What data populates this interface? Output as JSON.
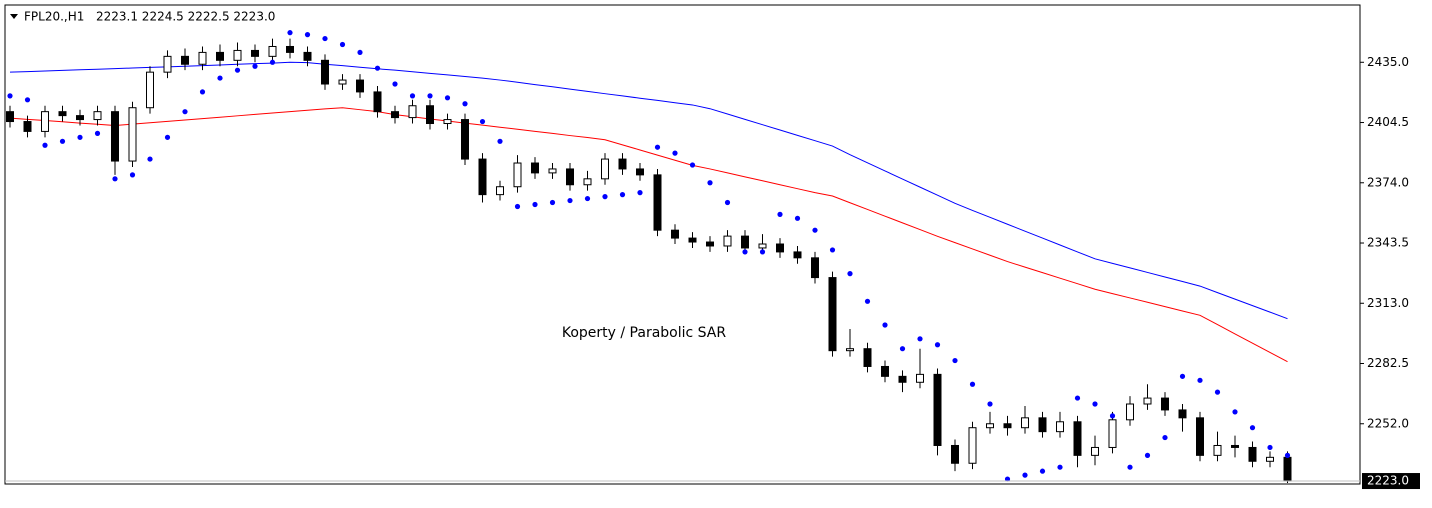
{
  "chart_data": {
    "type": "candlestick",
    "symbol": "FPL20.,H1",
    "header_prices": "2223.1 2224.5 2222.5 2223.0",
    "annotation": "Koperty / Parabolic SAR",
    "ylim": [
      2221.5,
      2464
    ],
    "yticks": [
      {
        "value": 2435.0,
        "label": "2435.0"
      },
      {
        "value": 2404.5,
        "label": "2404.5"
      },
      {
        "value": 2374.0,
        "label": "2374.0"
      },
      {
        "value": 2343.5,
        "label": "2343.5"
      },
      {
        "value": 2313.0,
        "label": "2313.0"
      },
      {
        "value": 2282.5,
        "label": "2282.5"
      },
      {
        "value": 2252.0,
        "label": "2252.0"
      }
    ],
    "last_price": {
      "value": 2223.0,
      "label": "2223.0"
    },
    "up_color": "#ffffff",
    "down_color": "#000000",
    "open": [
      2410,
      2405,
      2400,
      2410,
      2408,
      2406,
      2410,
      2385,
      2412,
      2430,
      2438,
      2434,
      2440,
      2436,
      2441,
      2438,
      2443,
      2440,
      2436,
      2424,
      2426,
      2420,
      2410,
      2407,
      2413,
      2404,
      2406,
      2386,
      2368,
      2372,
      2384,
      2379,
      2381,
      2373,
      2376,
      2386,
      2381,
      2378,
      2350,
      2346,
      2344,
      2342,
      2347,
      2341,
      2343,
      2339,
      2336,
      2326,
      2289,
      2290,
      2281,
      2276,
      2273,
      2277,
      2241,
      2232,
      2250,
      2252,
      2250,
      2255,
      2248,
      2253,
      2236,
      2240,
      2254,
      2262,
      2265,
      2259,
      2255,
      2236,
      2241,
      2240,
      2233,
      2235
    ],
    "high": [
      2413,
      2408,
      2413,
      2413,
      2411,
      2413,
      2413,
      2415,
      2433,
      2441,
      2442,
      2443,
      2444,
      2445,
      2444,
      2447,
      2447,
      2443,
      2439,
      2429,
      2429,
      2423,
      2413,
      2416,
      2416,
      2409,
      2409,
      2389,
      2375,
      2388,
      2387,
      2384,
      2384,
      2380,
      2389,
      2389,
      2384,
      2381,
      2353,
      2349,
      2347,
      2350,
      2350,
      2348,
      2346,
      2342,
      2339,
      2329,
      2300,
      2293,
      2284,
      2279,
      2290,
      2280,
      2244,
      2253,
      2258,
      2256,
      2261,
      2258,
      2258,
      2256,
      2246,
      2258,
      2266,
      2272,
      2268,
      2262,
      2258,
      2248,
      2246,
      2243,
      2238,
      2238
    ],
    "low": [
      2402,
      2397,
      2397,
      2405,
      2403,
      2403,
      2378,
      2382,
      2409,
      2427,
      2431,
      2431,
      2433,
      2433,
      2435,
      2435,
      2437,
      2433,
      2421,
      2421,
      2417,
      2407,
      2404,
      2404,
      2401,
      2401,
      2383,
      2364,
      2365,
      2369,
      2376,
      2376,
      2370,
      2370,
      2373,
      2378,
      2375,
      2347,
      2343,
      2341,
      2339,
      2339,
      2338,
      2338,
      2336,
      2333,
      2323,
      2286,
      2286,
      2278,
      2273,
      2268,
      2270,
      2236,
      2228,
      2229,
      2247,
      2246,
      2247,
      2245,
      2245,
      2230,
      2231,
      2237,
      2251,
      2259,
      2256,
      2248,
      2233,
      2233,
      2235,
      2230,
      2230,
      2222
    ],
    "close": [
      2405,
      2400,
      2410,
      2408,
      2406,
      2410,
      2385,
      2412,
      2430,
      2438,
      2434,
      2440,
      2436,
      2441,
      2438,
      2443,
      2440,
      2436,
      2424,
      2426,
      2420,
      2410,
      2407,
      2413,
      2404,
      2406,
      2386,
      2368,
      2372,
      2384,
      2379,
      2381,
      2373,
      2376,
      2386,
      2381,
      2378,
      2350,
      2346,
      2344,
      2342,
      2347,
      2341,
      2343,
      2339,
      2336,
      2326,
      2289,
      2290,
      2281,
      2276,
      2273,
      2277,
      2241,
      2232,
      2250,
      2252,
      2250,
      2255,
      2248,
      2253,
      2236,
      2240,
      2254,
      2262,
      2265,
      2259,
      2255,
      2236,
      2241,
      2240,
      2233,
      2235,
      2223
    ],
    "lines": [
      {
        "color": "#0000ff",
        "values": [
          2430,
          2430.3,
          2430.6,
          2430.9,
          2431.2,
          2431.5,
          2431.8,
          2432.1,
          2432.4,
          2432.7,
          2433,
          2433.3,
          2433.6,
          2434,
          2434.3,
          2434.6,
          2435,
          2434.8,
          2434,
          2433.3,
          2432.5,
          2431.7,
          2431,
          2430.2,
          2429.4,
          2428.6,
          2427.8,
          2427,
          2426,
          2424.9,
          2423.7,
          2422.6,
          2421.4,
          2420.3,
          2419.1,
          2418,
          2416.8,
          2415.7,
          2414.5,
          2413.4,
          2411.5,
          2408.8,
          2406.1,
          2403.4,
          2400.7,
          2398,
          2395.3,
          2392.6,
          2388.2,
          2384.1,
          2380,
          2375.9,
          2371.8,
          2367.7,
          2363.6,
          2360,
          2356.5,
          2353,
          2349.5,
          2346,
          2342.5,
          2339,
          2335.5,
          2333.2,
          2330.9,
          2328.6,
          2326.3,
          2324,
          2321.7,
          2318.4,
          2315.1,
          2311.8,
          2308.5,
          2305.2
        ]
      },
      {
        "color": "#ff0000",
        "values": [
          2406.7,
          2406.1,
          2405.5,
          2404.9,
          2404.2,
          2403.6,
          2403,
          2403.7,
          2404.4,
          2405.1,
          2405.8,
          2406.5,
          2407.2,
          2407.9,
          2408.6,
          2409.3,
          2410,
          2410.7,
          2411.4,
          2412,
          2411,
          2410,
          2408.5,
          2407.4,
          2406.3,
          2405.3,
          2404.2,
          2403.2,
          2402.1,
          2401.1,
          2400,
          2399,
          2397.9,
          2396.9,
          2395.8,
          2393.2,
          2390.6,
          2388,
          2385.4,
          2382.8,
          2381,
          2379,
          2377,
          2375,
          2373,
          2371,
          2369,
          2367.3,
          2363.9,
          2360.5,
          2357.1,
          2353.7,
          2350.3,
          2346.9,
          2343.7,
          2340.5,
          2337.3,
          2334.1,
          2331.3,
          2328.5,
          2325.7,
          2322.9,
          2320.1,
          2317.9,
          2315.7,
          2313.5,
          2311.3,
          2309.1,
          2306.9,
          2302.2,
          2297.5,
          2292.8,
          2288.1,
          2283.4
        ]
      }
    ],
    "sar": {
      "color": "#0000ff",
      "values": [
        2418,
        2416,
        2393,
        2395,
        2397,
        2399,
        2376,
        2378,
        2386,
        2397,
        2410,
        2420,
        2427,
        2431,
        2433,
        2435,
        2450,
        2449,
        2447,
        2444,
        2440,
        2432,
        2424,
        2418,
        2418,
        2417,
        2414,
        2405,
        2395,
        2362,
        2363,
        2364,
        2365,
        2366,
        2367,
        2368,
        2369,
        2392,
        2389,
        2383,
        2374,
        2364,
        2339,
        2339,
        2358,
        2356,
        2350,
        2340,
        2328,
        2314,
        2302,
        2290,
        2295,
        2292,
        2284,
        2272,
        2262,
        2224,
        2226,
        2228,
        2230,
        2265,
        2262,
        2256,
        2230,
        2236,
        2245,
        2276,
        2274,
        2268,
        2258,
        2250,
        2240,
        2236
      ]
    }
  }
}
